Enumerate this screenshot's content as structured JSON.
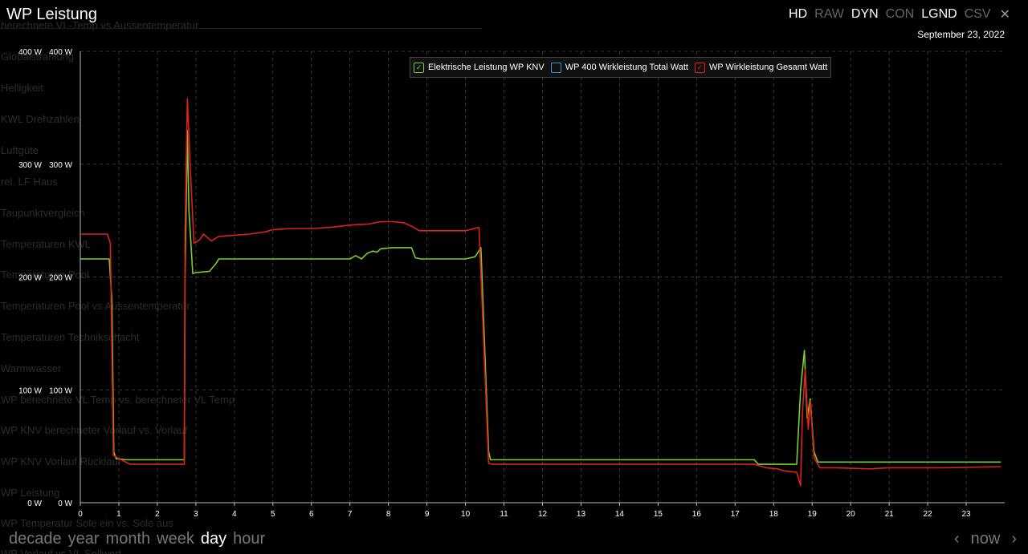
{
  "window_title": "WP Leistung",
  "toolbar": [
    "HD",
    "RAW",
    "DYN",
    "CON",
    "LGND",
    "CSV"
  ],
  "toolbar_active": [
    true,
    false,
    true,
    false,
    true,
    false
  ],
  "date_label": "September 23, 2022",
  "background_list": [
    "berechnete VL-Temp vs Aussentemperatur",
    "Globalstrahlung",
    "Helligkeit",
    "KWL Drehzahlen",
    "Luftgüte",
    "rel. LF Haus",
    "Taupunktvergleich",
    "Temperaturen KWL",
    "Temperaturen Pool",
    "Temperaturen Pool vs Aussentemperatur",
    "Temperaturen Technikschacht",
    "Warmwasser",
    "WP berechnete VL Temp vs. berechneter VL Temp",
    "WP KNV berechneter Vorlauf vs. Vorlauf",
    "WP KNV Vorlauf Rücklauf",
    "WP Leistung",
    "WP Temperatur Sole ein vs. Sole aus",
    "WP Vorlauf vs VL Sollwert"
  ],
  "time_ranges": [
    "decade",
    "year",
    "month",
    "week",
    "day",
    "hour"
  ],
  "selected_range": "day",
  "nav": {
    "prev": "‹",
    "now": "now",
    "next": "›"
  },
  "colors": {
    "green": "#7ccd2a",
    "blue": "#2f8fd8",
    "red": "#e0201a",
    "grid": "#3a3a3a"
  },
  "chart_data": {
    "type": "line",
    "x_ticks": [
      "0",
      "1",
      "2",
      "3",
      "4",
      "5",
      "6",
      "7",
      "8",
      "9",
      "10",
      "11",
      "12",
      "13",
      "14",
      "15",
      "16",
      "17",
      "18",
      "19",
      "20",
      "21",
      "22",
      "23"
    ],
    "xlim": [
      0,
      24
    ],
    "ylim": [
      0,
      400
    ],
    "y_ticks": [
      0,
      100,
      200,
      300,
      400
    ],
    "y_tick_labels": [
      "0 W",
      "100 W",
      "200 W",
      "300 W",
      "400 W"
    ],
    "legend_position": "top-center",
    "grid": true,
    "series": [
      {
        "name": "Elektrische Leistung WP KNV",
        "color": "#7ccd2a",
        "points": [
          [
            0,
            216
          ],
          [
            0.75,
            216
          ],
          [
            0.82,
            180
          ],
          [
            0.87,
            45
          ],
          [
            0.93,
            39
          ],
          [
            1.2,
            38
          ],
          [
            2.7,
            38
          ],
          [
            2.72,
            200
          ],
          [
            2.78,
            330
          ],
          [
            2.82,
            260
          ],
          [
            2.92,
            203
          ],
          [
            3.0,
            204
          ],
          [
            3.35,
            205
          ],
          [
            3.5,
            211
          ],
          [
            3.6,
            216
          ],
          [
            7.0,
            216
          ],
          [
            7.15,
            219
          ],
          [
            7.3,
            216
          ],
          [
            7.45,
            221
          ],
          [
            7.6,
            223
          ],
          [
            7.7,
            222
          ],
          [
            7.8,
            225
          ],
          [
            8.1,
            226
          ],
          [
            8.3,
            226
          ],
          [
            8.6,
            226
          ],
          [
            8.7,
            217
          ],
          [
            8.85,
            216
          ],
          [
            9.2,
            216
          ],
          [
            9.5,
            216
          ],
          [
            10.0,
            216
          ],
          [
            10.25,
            218
          ],
          [
            10.4,
            226
          ],
          [
            10.6,
            45
          ],
          [
            10.65,
            38
          ],
          [
            11,
            38
          ],
          [
            17.5,
            38
          ],
          [
            17.6,
            34
          ],
          [
            18.2,
            34
          ],
          [
            18.6,
            34
          ],
          [
            18.7,
            100
          ],
          [
            18.8,
            135
          ],
          [
            18.87,
            75
          ],
          [
            18.95,
            92
          ],
          [
            19.05,
            45
          ],
          [
            19.15,
            36
          ],
          [
            20,
            36
          ],
          [
            23.9,
            36
          ]
        ]
      },
      {
        "name": "WP 400 Wirkleistung Total Watt",
        "color": "#2f8fd8",
        "points": []
      },
      {
        "name": "WP Wirkleistung Gesamt Watt",
        "color": "#e0201a",
        "points": [
          [
            0,
            238
          ],
          [
            0.7,
            238
          ],
          [
            0.78,
            230
          ],
          [
            0.86,
            42
          ],
          [
            1.0,
            39
          ],
          [
            1.3,
            34
          ],
          [
            2.7,
            34
          ],
          [
            2.72,
            240
          ],
          [
            2.78,
            358
          ],
          [
            2.85,
            300
          ],
          [
            2.95,
            230
          ],
          [
            3.1,
            233
          ],
          [
            3.2,
            238
          ],
          [
            3.4,
            232
          ],
          [
            3.6,
            236
          ],
          [
            4.0,
            237
          ],
          [
            4.4,
            238
          ],
          [
            4.8,
            240
          ],
          [
            5.0,
            242
          ],
          [
            5.5,
            243
          ],
          [
            6.0,
            243
          ],
          [
            6.5,
            244
          ],
          [
            7.0,
            246
          ],
          [
            7.5,
            247
          ],
          [
            7.8,
            249
          ],
          [
            8.1,
            249
          ],
          [
            8.4,
            248
          ],
          [
            8.6,
            245
          ],
          [
            8.8,
            241
          ],
          [
            9.5,
            241
          ],
          [
            10.0,
            241
          ],
          [
            10.35,
            244
          ],
          [
            10.6,
            35
          ],
          [
            10.7,
            34
          ],
          [
            12,
            34
          ],
          [
            17.5,
            34
          ],
          [
            17.8,
            31
          ],
          [
            18.1,
            30
          ],
          [
            18.3,
            28
          ],
          [
            18.6,
            27
          ],
          [
            18.7,
            15
          ],
          [
            18.75,
            80
          ],
          [
            18.82,
            118
          ],
          [
            18.9,
            65
          ],
          [
            18.95,
            90
          ],
          [
            19.05,
            40
          ],
          [
            19.2,
            31
          ],
          [
            19.6,
            31
          ],
          [
            20.5,
            30
          ],
          [
            21,
            31
          ],
          [
            22.5,
            31
          ],
          [
            23.9,
            32
          ]
        ]
      }
    ]
  }
}
